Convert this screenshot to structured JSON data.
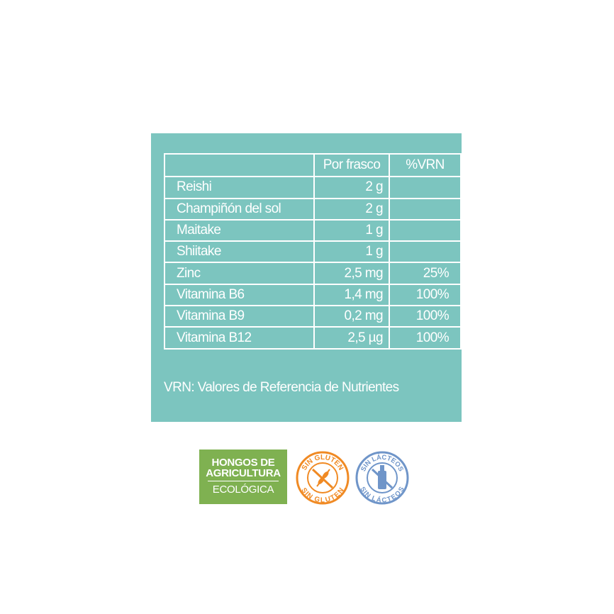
{
  "table": {
    "headers": [
      "",
      "Por frasco",
      "%VRN"
    ],
    "rows": [
      [
        "Reishi",
        "2 g",
        ""
      ],
      [
        "Champiñón del sol",
        "2 g",
        ""
      ],
      [
        "Maitake",
        "1 g",
        ""
      ],
      [
        "Shiitake",
        "1 g",
        ""
      ],
      [
        "Zinc",
        "2,5 mg",
        "25%"
      ],
      [
        "Vitamina B6",
        "1,4 mg",
        "100%"
      ],
      [
        "Vitamina B9",
        "0,2 mg",
        "100%"
      ],
      [
        "Vitamina B12",
        "2,5 µg",
        "100%"
      ]
    ]
  },
  "note": "VRN: Valores de Referencia de Nutrientes",
  "badges": {
    "organic": {
      "line1": "HONGOS DE",
      "line2": "AGRICULTURA",
      "line3": "ECOLÓGICA",
      "color": "#7fb151"
    },
    "gluten": {
      "text": "SIN GLUTEN",
      "color": "#f08a24",
      "icon": "wheat-crossed-icon"
    },
    "dairy": {
      "text": "SIN LÁCTEOS",
      "color": "#6f95c9",
      "icon": "bottle-crossed-icon"
    }
  },
  "colors": {
    "panel": "#7cc5bf"
  }
}
